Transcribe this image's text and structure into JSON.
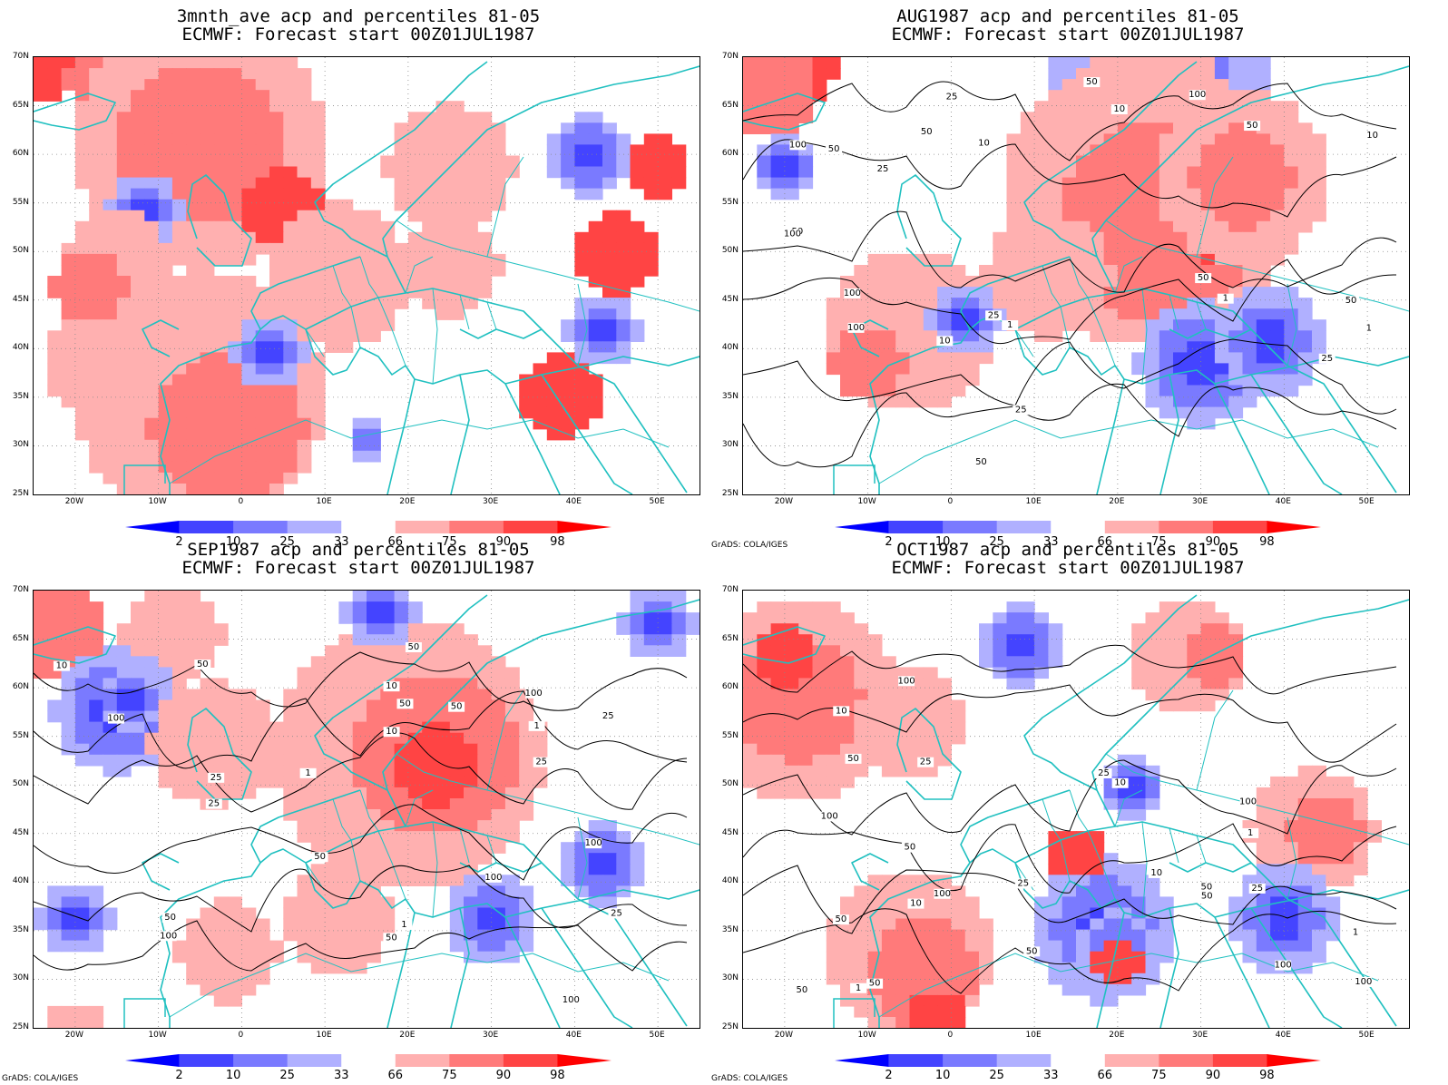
{
  "credit": "GrADS: COLA/IGES",
  "lat_labels": [
    "70N",
    "65N",
    "60N",
    "55N",
    "50N",
    "45N",
    "40N",
    "35N",
    "30N",
    "25N"
  ],
  "lon_labels": [
    "20W",
    "10W",
    "0",
    "10E",
    "20E",
    "30E",
    "40E",
    "50E"
  ],
  "colorbar": {
    "labels": [
      "2",
      "10",
      "25",
      "33",
      "66",
      "75",
      "90",
      "98"
    ],
    "colors": [
      "#0000ff",
      "#4444ff",
      "#7a7aff",
      "#b0b0ff",
      "#ffffff",
      "#ffb0b0",
      "#ff7a7a",
      "#ff4444",
      "#ff0000"
    ]
  },
  "colors": {
    "coast": "#20c0c0",
    "contour": "#000000"
  },
  "panels": [
    {
      "title1": "3mnth_ave acp and percentiles 81-05",
      "title2": "ECMWF: Forecast start 00Z01JUL1987",
      "show_credit": false,
      "contour_labels": [],
      "patches": [
        {
          "x": 1,
          "y": 0,
          "r": 45,
          "c": 3
        },
        {
          "x": 4,
          "y": 2,
          "r": 25,
          "c": 2
        },
        {
          "x": 12,
          "y": 8,
          "r": 140,
          "c": 1
        },
        {
          "x": 12,
          "y": 8,
          "r": 90,
          "c": 2
        },
        {
          "x": 18,
          "y": 14,
          "r": 45,
          "c": 3
        },
        {
          "x": 30,
          "y": 10,
          "r": 70,
          "c": 1
        },
        {
          "x": 22,
          "y": 20,
          "r": 80,
          "c": 1
        },
        {
          "x": 8,
          "y": 14,
          "r": 40,
          "c": 0
        },
        {
          "x": 4,
          "y": 28,
          "r": 50,
          "c": 1
        },
        {
          "x": 12,
          "y": 31,
          "r": 140,
          "c": 1
        },
        {
          "x": 14,
          "y": 34,
          "r": 85,
          "c": 2
        },
        {
          "x": 17,
          "y": 27,
          "r": 40,
          "c": 0
        },
        {
          "x": 6,
          "y": 19,
          "r": 60,
          "c": 1
        },
        {
          "x": 4,
          "y": 21,
          "r": 40,
          "c": 2
        },
        {
          "x": 42,
          "y": 18,
          "r": 45,
          "c": 3
        },
        {
          "x": 45,
          "y": 10,
          "r": 35,
          "c": 3
        },
        {
          "x": 38,
          "y": 31,
          "r": 45,
          "c": 3
        },
        {
          "x": 41,
          "y": 25,
          "r": 40,
          "c": 0
        },
        {
          "x": 30,
          "y": 19,
          "r": 55,
          "c": 1
        },
        {
          "x": 40,
          "y": 9,
          "r": 45,
          "c": 0
        },
        {
          "x": 24,
          "y": 35,
          "r": 20,
          "c": 0
        }
      ]
    },
    {
      "title1": "AUG1987 acp and percentiles 81-05",
      "title2": "ECMWF: Forecast start 00Z01JUL1987",
      "show_credit": true,
      "contour_labels": [
        "50",
        "100",
        "100",
        "50",
        "100",
        "100",
        "50",
        "50",
        "25",
        "50",
        "100",
        "50",
        "50",
        "10",
        "50",
        "25",
        "10",
        "25",
        "1",
        "10",
        "25",
        "25",
        "10",
        "1",
        "1"
      ],
      "patches": [
        {
          "x": 3,
          "y": 0,
          "r": 60,
          "c": 3
        },
        {
          "x": 2,
          "y": 3,
          "r": 50,
          "c": 2
        },
        {
          "x": 30,
          "y": 3,
          "r": 120,
          "c": 0
        },
        {
          "x": 30,
          "y": 4,
          "r": 70,
          "c": 1
        },
        {
          "x": 28,
          "y": 2,
          "r": 40,
          "c": 2
        },
        {
          "x": 29,
          "y": 13,
          "r": 160,
          "c": 1
        },
        {
          "x": 30,
          "y": 15,
          "r": 110,
          "c": 2
        },
        {
          "x": 35,
          "y": 15,
          "r": 50,
          "c": 3
        },
        {
          "x": 36,
          "y": 11,
          "r": 95,
          "c": 1
        },
        {
          "x": 36,
          "y": 11,
          "r": 55,
          "c": 2
        },
        {
          "x": 12,
          "y": 25,
          "r": 90,
          "c": 1
        },
        {
          "x": 22,
          "y": 20,
          "r": 70,
          "c": 1
        },
        {
          "x": 33,
          "y": 28,
          "r": 70,
          "c": 0
        },
        {
          "x": 38,
          "y": 26,
          "r": 60,
          "c": 0
        },
        {
          "x": 16,
          "y": 24,
          "r": 40,
          "c": 0
        },
        {
          "x": 9,
          "y": 28,
          "r": 40,
          "c": 2
        },
        {
          "x": 3,
          "y": 10,
          "r": 35,
          "c": 0
        }
      ]
    },
    {
      "title1": "SEP1987 acp and percentiles 81-05",
      "title2": "ECMWF: Forecast start 00Z01JUL1987",
      "show_credit": true,
      "contour_labels": [
        "100",
        "100",
        "50",
        "100",
        "100",
        "100",
        "50",
        "100",
        "50",
        "50",
        "50",
        "25",
        "25",
        "25",
        "50",
        "25",
        "1",
        "50",
        "25",
        "10",
        "10",
        "10",
        "1",
        "1"
      ],
      "patches": [
        {
          "x": 2,
          "y": 4,
          "r": 50,
          "c": 2
        },
        {
          "x": 10,
          "y": 4,
          "r": 55,
          "c": 1
        },
        {
          "x": 27,
          "y": 15,
          "r": 150,
          "c": 1
        },
        {
          "x": 29,
          "y": 15,
          "r": 90,
          "c": 2
        },
        {
          "x": 29,
          "y": 16,
          "r": 45,
          "c": 3
        },
        {
          "x": 6,
          "y": 11,
          "r": 70,
          "c": 0
        },
        {
          "x": 7,
          "y": 10,
          "r": 35,
          "c": 0
        },
        {
          "x": 13,
          "y": 14,
          "r": 70,
          "c": 1
        },
        {
          "x": 14,
          "y": 33,
          "r": 55,
          "c": 1
        },
        {
          "x": 22,
          "y": 30,
          "r": 60,
          "c": 1
        },
        {
          "x": 3,
          "y": 30,
          "r": 40,
          "c": 0
        },
        {
          "x": 33,
          "y": 30,
          "r": 50,
          "c": 0
        },
        {
          "x": 41,
          "y": 25,
          "r": 45,
          "c": 0
        },
        {
          "x": 25,
          "y": 2,
          "r": 40,
          "c": 0
        },
        {
          "x": 45,
          "y": 3,
          "r": 40,
          "c": 0
        },
        {
          "x": 3,
          "y": 40,
          "r": 30,
          "c": 1
        }
      ]
    },
    {
      "title1": "OCT1987 acp and percentiles 81-05",
      "title2": "ECMWF: Forecast start 00Z01JUL1987",
      "show_credit": true,
      "contour_labels": [
        "100",
        "100",
        "50",
        "100",
        "50",
        "100",
        "100",
        "100",
        "50",
        "50",
        "50",
        "50",
        "25",
        "50",
        "25",
        "25",
        "10",
        "10",
        "50",
        "25",
        "10",
        "1",
        "10",
        "1",
        "1"
      ],
      "patches": [
        {
          "x": 4,
          "y": 10,
          "r": 110,
          "c": 1
        },
        {
          "x": 4,
          "y": 10,
          "r": 70,
          "c": 2
        },
        {
          "x": 3,
          "y": 6,
          "r": 35,
          "c": 3
        },
        {
          "x": 12,
          "y": 12,
          "r": 60,
          "c": 1
        },
        {
          "x": 12,
          "y": 33,
          "r": 90,
          "c": 1
        },
        {
          "x": 13,
          "y": 35,
          "r": 60,
          "c": 2
        },
        {
          "x": 14,
          "y": 39,
          "r": 30,
          "c": 3
        },
        {
          "x": 32,
          "y": 6,
          "r": 65,
          "c": 1
        },
        {
          "x": 34,
          "y": 6,
          "r": 35,
          "c": 2
        },
        {
          "x": 41,
          "y": 22,
          "r": 70,
          "c": 1
        },
        {
          "x": 42,
          "y": 22,
          "r": 40,
          "c": 2
        },
        {
          "x": 26,
          "y": 31,
          "r": 80,
          "c": 0
        },
        {
          "x": 27,
          "y": 33,
          "r": 45,
          "c": 0
        },
        {
          "x": 27,
          "y": 34,
          "r": 25,
          "c": 3
        },
        {
          "x": 20,
          "y": 5,
          "r": 45,
          "c": 0
        },
        {
          "x": 39,
          "y": 30,
          "r": 60,
          "c": 0
        },
        {
          "x": 24,
          "y": 24,
          "r": 30,
          "c": 3
        },
        {
          "x": 28,
          "y": 18,
          "r": 35,
          "c": 0
        }
      ]
    }
  ]
}
